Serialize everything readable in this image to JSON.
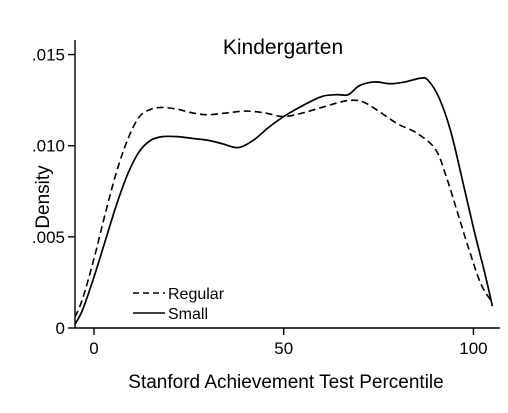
{
  "chart_data": {
    "type": "line",
    "title": "Kindergarten",
    "xlabel": "Stanford Achievement Test Percentile",
    "ylabel": "Density",
    "xlim": [
      -5,
      107
    ],
    "ylim": [
      0,
      0.0158
    ],
    "x_ticks": [
      {
        "value": 0,
        "label": "0"
      },
      {
        "value": 50,
        "label": "50"
      },
      {
        "value": 100,
        "label": "100"
      }
    ],
    "y_ticks": [
      {
        "value": 0,
        "label": "0"
      },
      {
        "value": 0.005,
        "label": ".005"
      },
      {
        "value": 0.01,
        "label": ".010"
      },
      {
        "value": 0.015,
        "label": ".015"
      }
    ],
    "grid": false,
    "legend_position": "bottom-left",
    "series": [
      {
        "name": "Regular",
        "style": "dashed",
        "color": "#000000",
        "x": [
          -5,
          -3,
          0,
          3,
          6,
          9,
          12,
          15,
          18,
          22,
          26,
          30,
          35,
          40,
          45,
          50,
          55,
          60,
          65,
          68,
          71,
          75,
          80,
          85,
          90,
          93,
          96,
          99,
          102,
          105
        ],
        "y": [
          0.0006,
          0.0016,
          0.0038,
          0.0063,
          0.0086,
          0.0104,
          0.0116,
          0.012,
          0.0121,
          0.012,
          0.0118,
          0.0117,
          0.0118,
          0.0119,
          0.0118,
          0.0116,
          0.0118,
          0.0121,
          0.0124,
          0.0125,
          0.0124,
          0.0119,
          0.0112,
          0.0107,
          0.0098,
          0.0082,
          0.0062,
          0.0042,
          0.0024,
          0.0014
        ]
      },
      {
        "name": "Small",
        "style": "solid",
        "color": "#000000",
        "x": [
          -5,
          -3,
          0,
          3,
          6,
          9,
          12,
          15,
          18,
          22,
          26,
          30,
          34,
          38,
          42,
          46,
          50,
          55,
          60,
          64,
          67,
          70,
          74,
          78,
          82,
          86,
          88,
          91,
          94,
          97,
          100,
          103,
          105
        ],
        "y": [
          0.0002,
          0.001,
          0.0028,
          0.0048,
          0.0068,
          0.0085,
          0.0097,
          0.0103,
          0.0105,
          0.0105,
          0.0104,
          0.0103,
          0.0101,
          0.0099,
          0.0103,
          0.011,
          0.0116,
          0.0122,
          0.0127,
          0.0128,
          0.0128,
          0.0133,
          0.0135,
          0.0134,
          0.0135,
          0.0137,
          0.0136,
          0.0126,
          0.0108,
          0.0082,
          0.0055,
          0.003,
          0.0012
        ]
      }
    ]
  }
}
